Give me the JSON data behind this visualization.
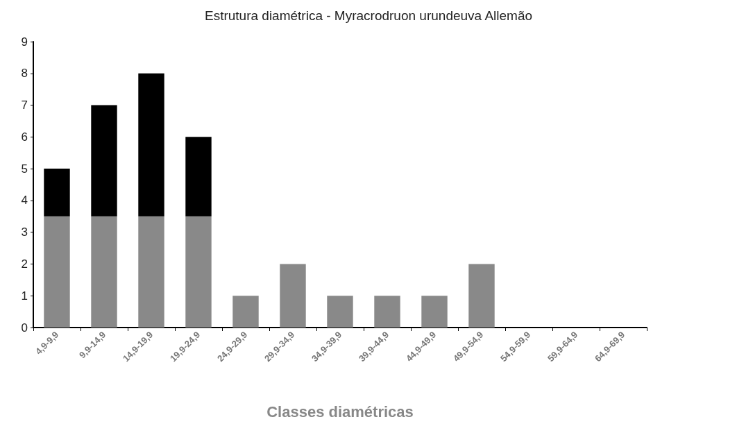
{
  "chart_data": {
    "type": "bar",
    "title": "Estrutura diamétrica - Myracrodruon urundeuva Allemão",
    "xlabel": "Classes diamétricas",
    "categories": [
      "4,9-9,9",
      "9,9-14,9",
      "14,9-19,9",
      "19,9-24,9",
      "24,9-29,9",
      "29,9-34,9",
      "34,9-39,9",
      "39,9-44,9",
      "44,9-49,9",
      "49,9-54,9",
      "54,9-59,9",
      "59,9-64,9",
      "64,9-69,9"
    ],
    "stacked": true,
    "series": [
      {
        "color": "#898989",
        "values": [
          3.5,
          3.5,
          3.5,
          3.5,
          1,
          2,
          1,
          1,
          1,
          2,
          0,
          0,
          0
        ]
      },
      {
        "color": "#000000",
        "values": [
          1.5,
          3.5,
          4.5,
          2.5,
          null,
          null,
          null,
          null,
          null,
          null,
          null,
          null,
          null
        ]
      }
    ],
    "ylim": [
      0,
      9
    ],
    "yticks": [
      0,
      1,
      2,
      3,
      4,
      5,
      6,
      7,
      8,
      9
    ],
    "grid": false
  }
}
